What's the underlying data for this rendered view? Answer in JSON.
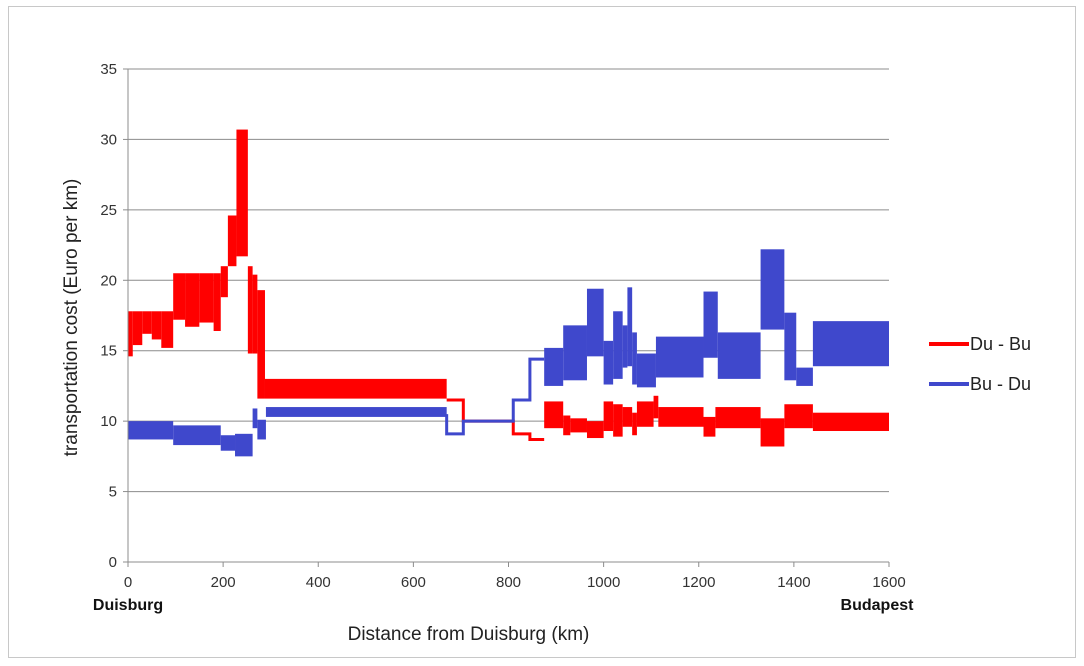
{
  "chart_data": {
    "type": "line",
    "title": "",
    "xlabel": "Distance from Duisburg (km)",
    "ylabel": "transportation cost (Euro per km)",
    "xlim": [
      0,
      1600
    ],
    "ylim": [
      0,
      35
    ],
    "xticks": [
      0,
      200,
      400,
      600,
      800,
      1000,
      1200,
      1400,
      1600
    ],
    "yticks": [
      0,
      5,
      10,
      15,
      20,
      25,
      30,
      35
    ],
    "x_end_labels": {
      "start": "Duisburg",
      "end": "Budapest"
    },
    "grid": "horizontal",
    "legend": "right",
    "series": [
      {
        "name": "Du - Bu",
        "color": "#ff0000",
        "band_segments": [
          [
            0,
            10,
            14.6,
            17.8
          ],
          [
            10,
            30,
            15.4,
            17.8
          ],
          [
            30,
            50,
            16.2,
            17.8
          ],
          [
            50,
            70,
            15.8,
            17.8
          ],
          [
            70,
            95,
            15.2,
            17.8
          ],
          [
            95,
            120,
            17.2,
            20.5
          ],
          [
            120,
            150,
            16.7,
            20.5
          ],
          [
            150,
            180,
            17.0,
            20.5
          ],
          [
            180,
            195,
            16.4,
            20.5
          ],
          [
            195,
            210,
            18.8,
            21.0
          ],
          [
            210,
            228,
            21.0,
            24.6
          ],
          [
            228,
            252,
            21.7,
            30.7
          ],
          [
            252,
            262,
            14.8,
            21.0
          ],
          [
            262,
            272,
            14.8,
            20.4
          ],
          [
            272,
            288,
            11.6,
            19.3
          ],
          [
            288,
            670,
            11.6,
            13.0
          ]
        ],
        "line_steps": [
          [
            670,
            11.5
          ],
          [
            705,
            11.5
          ],
          [
            705,
            10.0
          ],
          [
            810,
            10.0
          ],
          [
            810,
            9.1
          ],
          [
            845,
            9.1
          ],
          [
            845,
            8.7
          ],
          [
            875,
            8.7
          ]
        ],
        "band_segments_2": [
          [
            875,
            915,
            9.5,
            11.4
          ],
          [
            915,
            930,
            9.0,
            10.4
          ],
          [
            930,
            965,
            9.2,
            10.2
          ],
          [
            965,
            1000,
            8.8,
            10.0
          ],
          [
            1000,
            1020,
            9.3,
            11.4
          ],
          [
            1020,
            1040,
            8.9,
            11.2
          ],
          [
            1040,
            1060,
            9.6,
            11.0
          ],
          [
            1060,
            1070,
            9.0,
            10.6
          ],
          [
            1070,
            1105,
            9.6,
            11.4
          ],
          [
            1105,
            1115,
            10.2,
            11.8
          ],
          [
            1115,
            1210,
            9.6,
            11.0
          ],
          [
            1210,
            1235,
            8.9,
            10.3
          ],
          [
            1235,
            1330,
            9.5,
            11.0
          ],
          [
            1330,
            1380,
            8.2,
            10.2
          ],
          [
            1380,
            1440,
            9.5,
            11.2
          ],
          [
            1440,
            1600,
            9.3,
            10.6
          ]
        ]
      },
      {
        "name": "Bu - Du",
        "color": "#3f48cc",
        "band_segments": [
          [
            0,
            95,
            8.7,
            10.0
          ],
          [
            95,
            195,
            8.3,
            9.7
          ],
          [
            195,
            225,
            7.9,
            9.0
          ],
          [
            225,
            262,
            7.5,
            9.1
          ],
          [
            262,
            272,
            9.5,
            10.9
          ],
          [
            272,
            290,
            8.7,
            10.1
          ],
          [
            290,
            670,
            10.3,
            11.0
          ]
        ],
        "line_steps": [
          [
            670,
            10.5
          ],
          [
            670,
            9.1
          ],
          [
            705,
            9.1
          ],
          [
            705,
            10.0
          ],
          [
            810,
            10.0
          ],
          [
            810,
            11.5
          ],
          [
            845,
            11.5
          ],
          [
            845,
            14.4
          ],
          [
            875,
            14.4
          ]
        ],
        "band_segments_2": [
          [
            875,
            915,
            12.5,
            15.2
          ],
          [
            915,
            965,
            12.9,
            16.8
          ],
          [
            965,
            1000,
            14.6,
            19.4
          ],
          [
            1000,
            1020,
            12.6,
            15.7
          ],
          [
            1020,
            1040,
            13.0,
            17.8
          ],
          [
            1040,
            1050,
            13.8,
            16.8
          ],
          [
            1050,
            1060,
            13.9,
            19.5
          ],
          [
            1060,
            1070,
            12.6,
            16.3
          ],
          [
            1070,
            1110,
            12.4,
            14.8
          ],
          [
            1110,
            1210,
            13.1,
            16.0
          ],
          [
            1210,
            1240,
            14.5,
            19.2
          ],
          [
            1240,
            1330,
            13.0,
            16.3
          ],
          [
            1330,
            1380,
            16.5,
            22.2
          ],
          [
            1380,
            1405,
            12.9,
            17.7
          ],
          [
            1405,
            1440,
            12.5,
            13.8
          ],
          [
            1440,
            1600,
            13.9,
            17.1
          ]
        ]
      }
    ]
  }
}
